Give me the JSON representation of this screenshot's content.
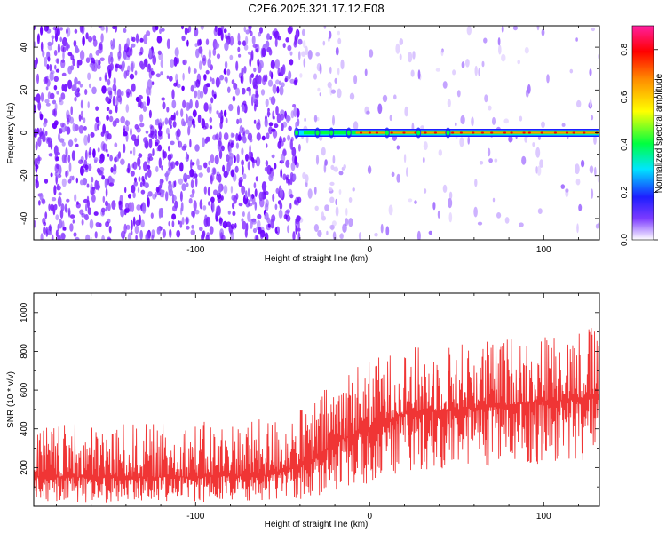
{
  "title": "C2E6.2025.321.17.12.E08",
  "chart_data": [
    {
      "type": "heatmap",
      "xlabel": "Height of straight line (km)",
      "ylabel": "Frequency (Hz)",
      "xlim": [
        -193,
        132
      ],
      "ylim": [
        -50,
        50
      ],
      "xticks": [
        {
          "v": -100,
          "label": "-100"
        },
        {
          "v": 0,
          "label": "0"
        },
        {
          "v": 100,
          "label": "100"
        }
      ],
      "yticks": [
        {
          "v": -40,
          "label": "-40"
        },
        {
          "v": -20,
          "label": "-20"
        },
        {
          "v": 0,
          "label": "0"
        },
        {
          "v": 20,
          "label": "20"
        },
        {
          "v": 40,
          "label": "40"
        }
      ],
      "features": {
        "noise_region_end_km": -40,
        "sparse_region_end_km": -13,
        "signal_start_km": -42,
        "signal_frequency_hz": 0
      },
      "colorbar": {
        "label": "Normalized spectral amplitude",
        "range": [
          0,
          0.9
        ],
        "ticks": [
          {
            "v": 0.0,
            "label": "0.0"
          },
          {
            "v": 0.2,
            "label": "0.2"
          },
          {
            "v": 0.4,
            "label": "0.4"
          },
          {
            "v": 0.6,
            "label": "0.6"
          },
          {
            "v": 0.8,
            "label": "0.8"
          }
        ]
      }
    },
    {
      "type": "line",
      "xlabel": "Height of straight line (km)",
      "ylabel": "SNR (10 * v/v)",
      "xlim": [
        -193,
        132
      ],
      "ylim": [
        0,
        1100
      ],
      "xticks": [
        {
          "v": -100,
          "label": "-100"
        },
        {
          "v": 0,
          "label": "0"
        },
        {
          "v": 100,
          "label": "100"
        }
      ],
      "yticks": [
        {
          "v": 200,
          "label": "200"
        },
        {
          "v": 400,
          "label": "400"
        },
        {
          "v": 600,
          "label": "600"
        },
        {
          "v": 800,
          "label": "800"
        },
        {
          "v": 1000,
          "label": "1000"
        }
      ],
      "series_color": "#f03535",
      "envelope": [
        {
          "x": -193,
          "low": 20,
          "high": 420,
          "mean": 150
        },
        {
          "x": -120,
          "low": 20,
          "high": 430,
          "mean": 150
        },
        {
          "x": -60,
          "low": 25,
          "high": 450,
          "mean": 160
        },
        {
          "x": -35,
          "low": 40,
          "high": 520,
          "mean": 220
        },
        {
          "x": -15,
          "low": 80,
          "high": 720,
          "mean": 350
        },
        {
          "x": 20,
          "low": 180,
          "high": 820,
          "mean": 480
        },
        {
          "x": 50,
          "low": 200,
          "high": 850,
          "mean": 500
        },
        {
          "x": 100,
          "low": 220,
          "high": 900,
          "mean": 540
        },
        {
          "x": 132,
          "low": 240,
          "high": 950,
          "mean": 560
        }
      ]
    }
  ]
}
